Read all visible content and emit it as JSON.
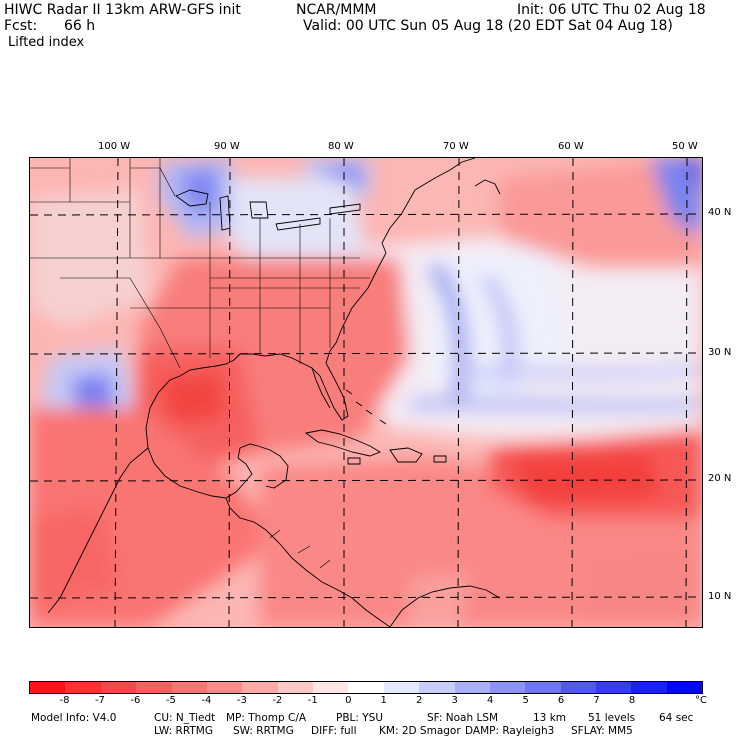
{
  "header": {
    "line1_left": "HIWC Radar II 13km ARW-GFS init",
    "line1_mid": "NCAR/MMM",
    "line1_right": "Init: 06 UTC Thu 02 Aug 18",
    "line2_left": "Fcst:",
    "line2_fcst": "66 h",
    "line2_right": "Valid: 00 UTC Sun 05 Aug 18 (20 EDT Sat 04 Aug 18)",
    "line3": "Lifted index"
  },
  "map": {
    "lon_labels": [
      "100 W",
      "90 W",
      "80 W",
      "70 W",
      "60 W",
      "50 W"
    ],
    "lat_labels": [
      "40 N",
      "30 N",
      "20 N",
      "10 N"
    ]
  },
  "colorbar": {
    "labels": [
      "-8",
      "-7",
      "-6",
      "-5",
      "-4",
      "-3",
      "-2",
      "-1",
      "0",
      "1",
      "2",
      "3",
      "4",
      "5",
      "6",
      "7",
      "8"
    ],
    "unit": "°C",
    "colors": [
      "#f51616",
      "#f7322f",
      "#f84848",
      "#f95f5d",
      "#fa7573",
      "#fb8c89",
      "#fcaaa8",
      "#fdc9c7",
      "#fee6e5",
      "#ffffff",
      "#e6e8fd",
      "#c9cdfb",
      "#aab0f8",
      "#8c93f5",
      "#7076f1",
      "#5259ee",
      "#353def",
      "#1a22ef",
      "#0009ee"
    ]
  },
  "footer": {
    "model_info": "Model Info: V4.0",
    "cu": "CU: N_Tiedt",
    "mp": "MP: Thomp C/A",
    "pbl": "PBL: YSU",
    "sf": "SF: Noah LSM",
    "res": "13 km",
    "levels": "51 levels",
    "dt": "64 sec",
    "lw": "LW: RRTMG",
    "sw": "SW: RRTMG",
    "diff": "DIFF: full",
    "km": "KM: 2D Smagor",
    "damp": "DAMP: Rayleigh3",
    "sflay": "SFLAY: MM5"
  }
}
